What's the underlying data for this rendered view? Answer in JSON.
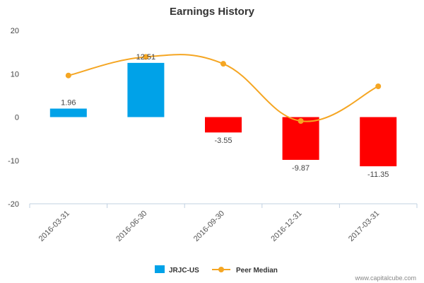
{
  "chart_data": {
    "type": "bar",
    "title": "Earnings History",
    "categories": [
      "2016-03-31",
      "2016-06-30",
      "2016-09-30",
      "2016-12-31",
      "2017-03-31"
    ],
    "ylim": [
      -20,
      20
    ],
    "yticks": [
      "20",
      "10",
      "0",
      "-10",
      "-20"
    ],
    "series": [
      {
        "name": "JRJC-US",
        "type": "bar",
        "values": [
          1.96,
          12.51,
          -3.55,
          -9.87,
          -11.35
        ],
        "labels": [
          "1.96",
          "12.51",
          "-3.55",
          "-9.87",
          "-11.35"
        ],
        "color_positive": "#00a2e8",
        "color_negative": "#ff0000"
      },
      {
        "name": "Peer Median",
        "type": "line",
        "values": [
          9.6,
          13.9,
          12.3,
          -0.9,
          7.1
        ],
        "color": "#f5a623"
      }
    ],
    "legend_position": "bottom-center"
  },
  "watermark": "www.capitalcube.com"
}
